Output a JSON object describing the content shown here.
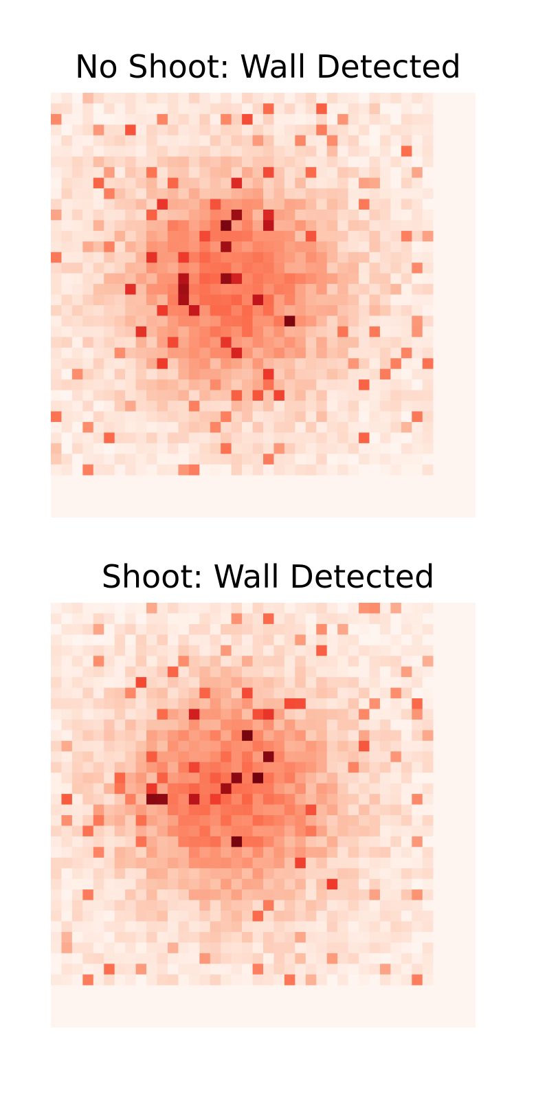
{
  "chart_data": [
    {
      "type": "heatmap",
      "title": "No Shoot: Wall Detected",
      "colormap": "Reds",
      "vmin": 0,
      "vmax": 1,
      "grid": false,
      "seed": 7,
      "hotspots": [
        [
          16,
          12
        ],
        [
          16,
          14
        ],
        [
          17,
          11
        ],
        [
          16,
          17
        ],
        [
          12,
          19
        ],
        [
          12,
          18
        ],
        [
          22,
          21
        ]
      ]
    },
    {
      "type": "heatmap",
      "title": "Shoot: Wall Detected",
      "colormap": "Reds",
      "vmin": 0,
      "vmax": 1,
      "grid": false,
      "seed": 23,
      "hotspots": [
        [
          17,
          16
        ],
        [
          20,
          14
        ],
        [
          18,
          12
        ],
        [
          9,
          18
        ],
        [
          10,
          18
        ],
        [
          17,
          22
        ],
        [
          19,
          16
        ]
      ]
    }
  ]
}
